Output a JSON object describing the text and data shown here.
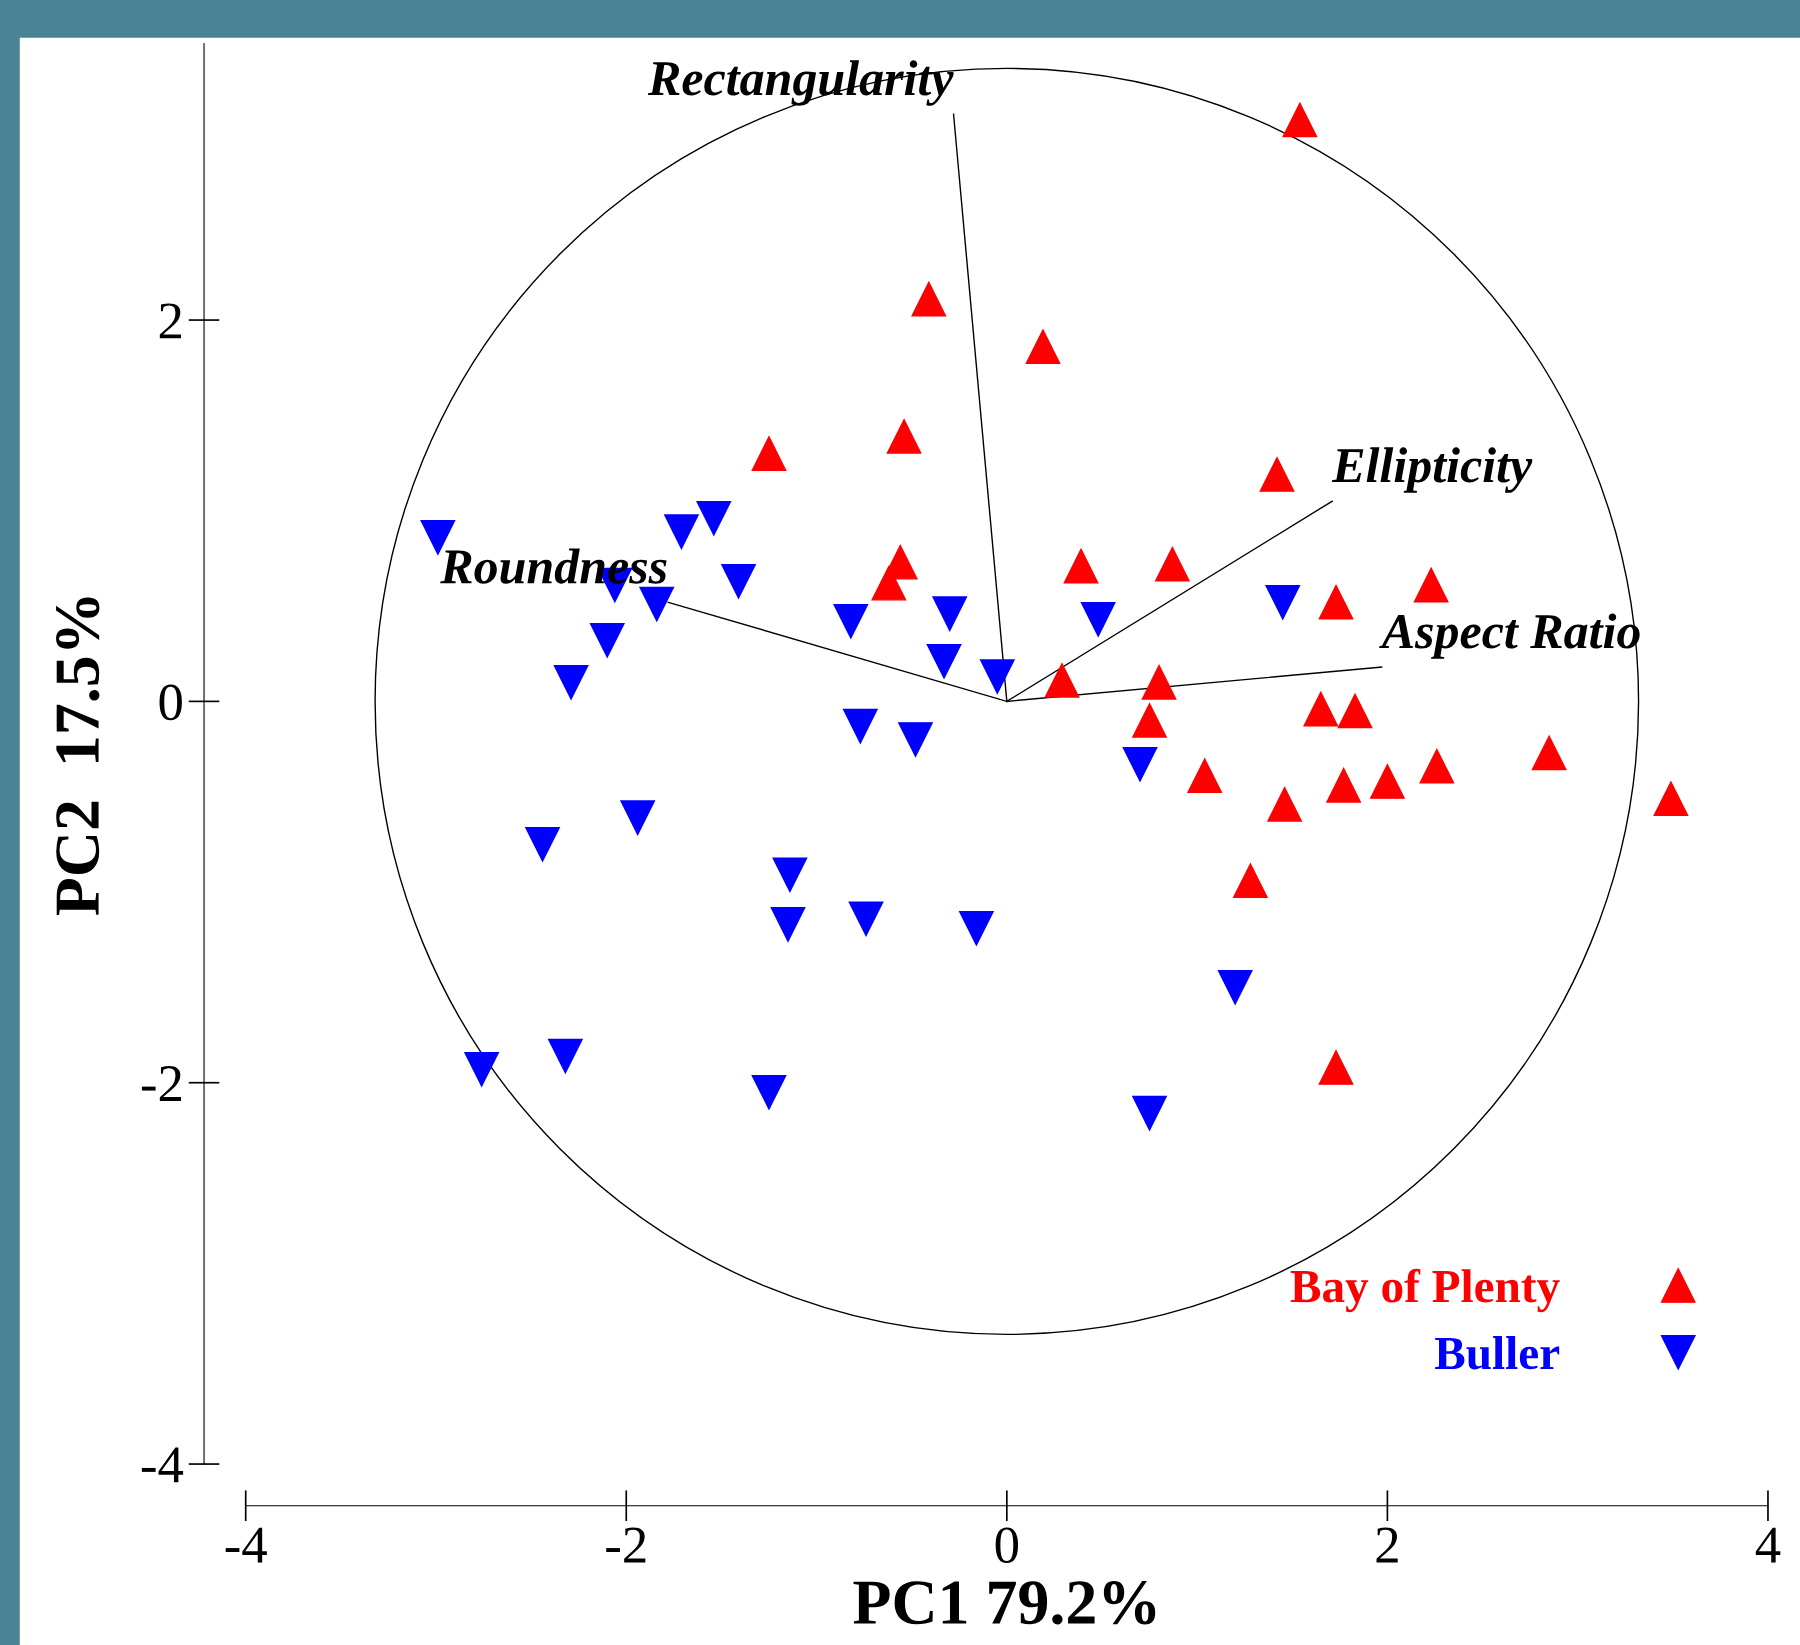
{
  "chart_data": {
    "type": "scatter",
    "xlabel": "PC1 79.2%",
    "ylabel": "PC2  17.5%",
    "xlim": [
      -4,
      4
    ],
    "ylim": [
      -4,
      3.45
    ],
    "xticks": [
      {
        "value": -4,
        "label": "-4"
      },
      {
        "value": -2,
        "label": "-2"
      },
      0,
      2,
      4
    ],
    "yticks": [
      {
        "value": -4,
        "label": "-4"
      },
      {
        "value": -2,
        "label": "-2"
      },
      0,
      2
    ],
    "grid": false,
    "legend": "bottom right",
    "series": [
      {
        "name": "Bay of Plenty",
        "color": "#ff0000",
        "marker": "triangle",
        "x": [
          1.54,
          -0.41,
          0.19,
          -1.25,
          -0.54,
          1.42,
          -0.56,
          -0.62,
          0.39,
          0.87,
          1.73,
          2.23,
          0.29,
          0.8,
          0.75,
          1.65,
          1.83,
          1.04,
          1.46,
          1.77,
          2.0,
          2.26,
          2.85,
          3.49,
          1.28,
          1.73
        ],
        "values": [
          3.05,
          2.11,
          1.86,
          1.3,
          1.39,
          1.19,
          0.73,
          0.62,
          0.71,
          0.72,
          0.52,
          0.61,
          0.11,
          0.1,
          -0.1,
          -0.04,
          -0.05,
          -0.39,
          -0.54,
          -0.44,
          -0.42,
          -0.34,
          -0.27,
          -0.51,
          -0.94,
          -1.92
        ]
      },
      {
        "name": "Buller",
        "color": "#0000ff",
        "marker": "triangle-down",
        "x": [
          -2.99,
          -1.71,
          -1.54,
          -1.41,
          -2.06,
          -1.84,
          -2.1,
          -2.29,
          -0.82,
          -0.3,
          -0.33,
          -0.05,
          0.48,
          1.45,
          -0.77,
          -0.48,
          0.7,
          -1.94,
          -2.44,
          -1.14,
          -1.15,
          -0.74,
          -0.16,
          1.2,
          -2.76,
          -2.32,
          -1.25,
          0.75
        ],
        "values": [
          0.86,
          0.89,
          0.96,
          0.63,
          0.61,
          0.51,
          0.32,
          0.1,
          0.42,
          0.46,
          0.21,
          0.13,
          0.43,
          0.52,
          -0.13,
          -0.2,
          -0.33,
          -0.61,
          -0.75,
          -0.91,
          -1.17,
          -1.14,
          -1.19,
          -1.5,
          -1.93,
          -1.86,
          -2.05,
          -2.16
        ]
      },
      {
        "type": "line",
        "color": "#000000",
        "x": [
          0,
          -0.28
        ],
        "values": [
          0,
          3.08
        ]
      },
      {
        "type": "line",
        "color": "#000000",
        "x": [
          0,
          1.71
        ],
        "values": [
          0,
          1.05
        ]
      },
      {
        "type": "line",
        "color": "#000000",
        "x": [
          0,
          1.97
        ],
        "values": [
          0,
          0.18
        ]
      },
      {
        "type": "line",
        "color": "#000000",
        "x": [
          0,
          -1.78
        ],
        "values": [
          0,
          0.52
        ]
      }
    ],
    "annotations": [
      {
        "text": "Rectangularity",
        "x": -0.28,
        "y": 3.08
      },
      {
        "text": "Ellipticity",
        "x": 1.71,
        "y": 1.05
      },
      {
        "text": "Aspect Ratio",
        "x": 1.97,
        "y": 0.18
      },
      {
        "text": "Roundness",
        "x": -1.78,
        "y": 0.52
      }
    ]
  }
}
